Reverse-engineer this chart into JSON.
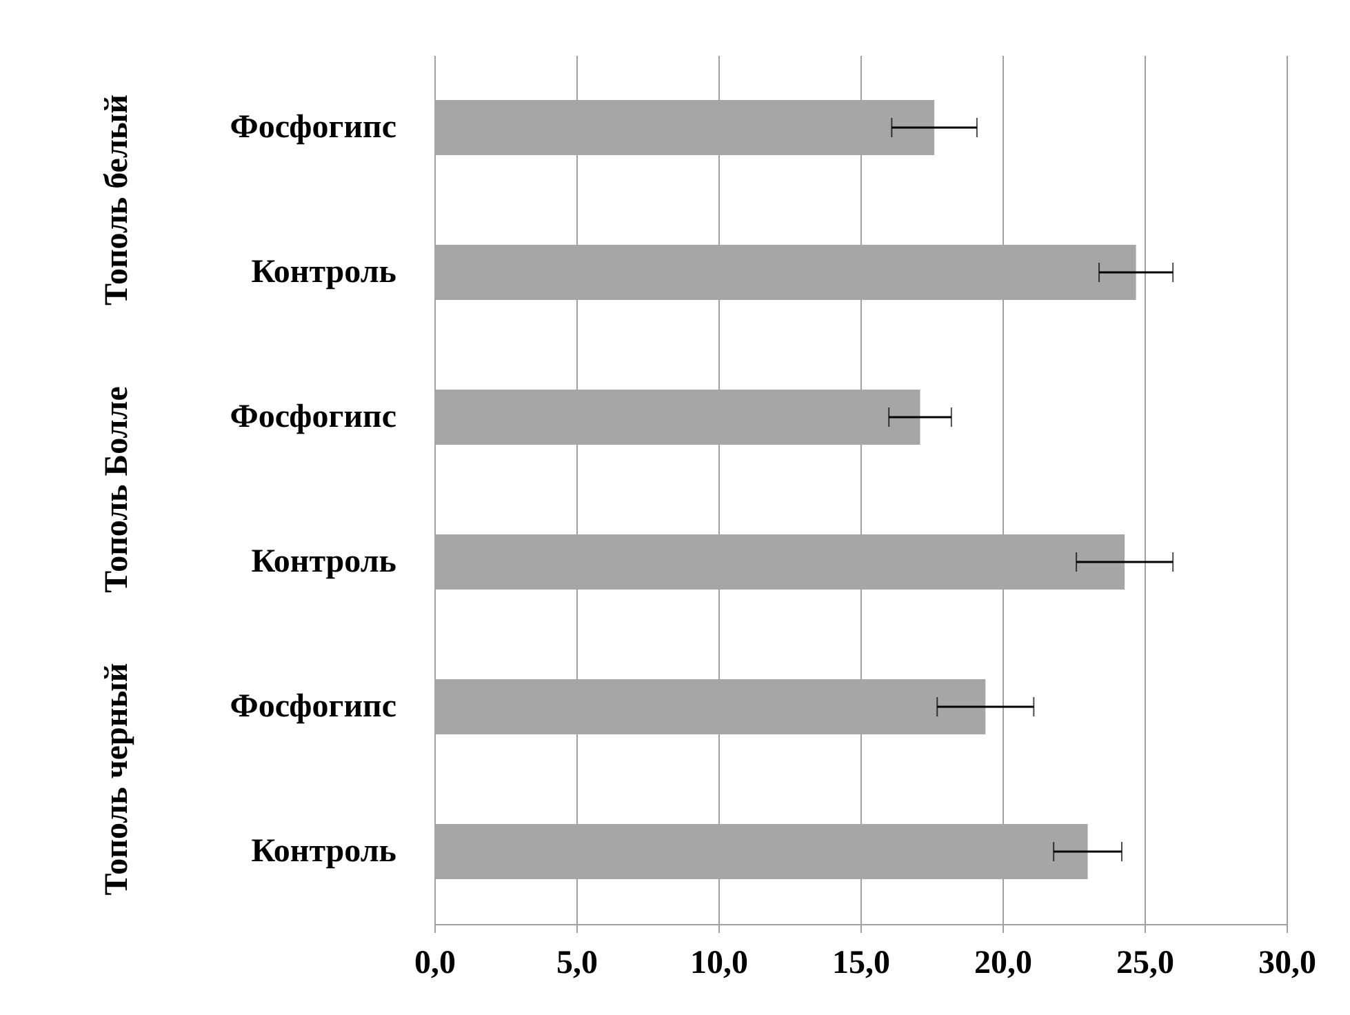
{
  "chart_data": {
    "type": "bar",
    "orientation": "horizontal",
    "categories": [
      "Фосфогипс",
      "Контроль",
      "Фосфогипс",
      "Контроль",
      "Фосфогипс",
      "Контроль"
    ],
    "values": [
      17.6,
      24.7,
      17.1,
      24.3,
      19.4,
      23.0
    ],
    "errors": [
      1.5,
      1.3,
      1.1,
      1.7,
      1.7,
      1.2
    ],
    "color": "#a6a6a6",
    "xlim": [
      0,
      30
    ],
    "xticks": [
      {
        "value": 0,
        "label": "0,0"
      },
      {
        "value": 5,
        "label": "5,0"
      },
      {
        "value": 10,
        "label": "10,0"
      },
      {
        "value": 15,
        "label": "15,0"
      },
      {
        "value": 20,
        "label": "20,0"
      },
      {
        "value": 25,
        "label": "25,0"
      },
      {
        "value": 30,
        "label": "30,0"
      }
    ],
    "grid": "x",
    "annotations": [
      "Тополь белый",
      "Тополь Болле",
      "Тополь черный"
    ]
  }
}
